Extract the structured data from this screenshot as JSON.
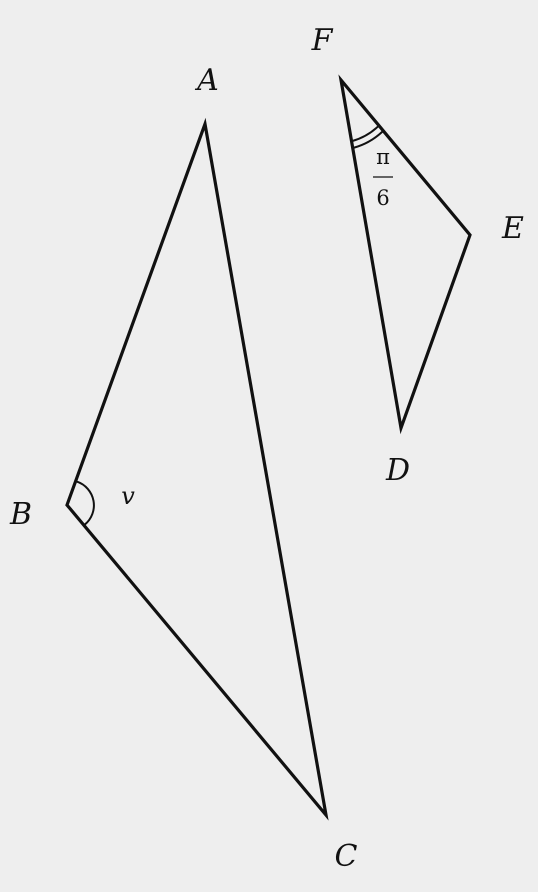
{
  "triangles": [
    {
      "vertices": [
        "A",
        "B",
        "C"
      ],
      "angle_label": "v",
      "angle_at": "B"
    },
    {
      "vertices": [
        "F",
        "E",
        "D"
      ],
      "angle_label_numerator": "π",
      "angle_label_denominator": "6",
      "angle_at": "F"
    }
  ],
  "labels": {
    "A": "A",
    "B": "B",
    "C": "C",
    "D": "D",
    "E": "E",
    "F": "F"
  },
  "angles": {
    "v": "v",
    "pi_over_6_num": "π",
    "pi_over_6_den": "6"
  }
}
